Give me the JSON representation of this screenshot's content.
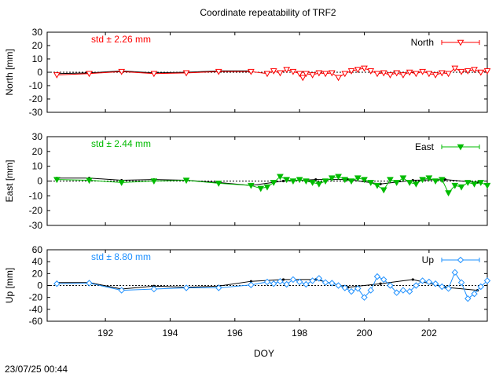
{
  "title": "Coordinate repeatability of TRF2",
  "timestamp": "23/07/25 00:44",
  "chart_data": {
    "type": "line",
    "title": "Coordinate repeatability of TRF2",
    "xlabel": "DOY",
    "xlim": [
      190.2,
      203.8
    ],
    "xticks": [
      192,
      194,
      196,
      198,
      200,
      202
    ],
    "grid": false,
    "legend_position": "top-right",
    "panels": [
      {
        "name": "North",
        "ylabel": "North [mm]",
        "ylim": [
          -30,
          30
        ],
        "yticks": [
          -30,
          -20,
          -10,
          0,
          10,
          20,
          30
        ],
        "std_label": "std ± 2.26 mm",
        "color": "#ff0000",
        "marker": "triangle-down-open",
        "series": [
          {
            "name": "North",
            "x": [
              190.5,
              191.5,
              192.5,
              193.5,
              194.5,
              195.5,
              196.5,
              197.0,
              197.2,
              197.4,
              197.6,
              197.8,
              198.0,
              198.1,
              198.2,
              198.4,
              198.6,
              198.8,
              199.0,
              199.2,
              199.4,
              199.6,
              199.8,
              200.0,
              200.2,
              200.4,
              200.6,
              200.8,
              201.0,
              201.2,
              201.4,
              201.6,
              201.8,
              202.0,
              202.2,
              202.4,
              202.6,
              202.8,
              203.0,
              203.2,
              203.4,
              203.6,
              203.8
            ],
            "y": [
              -2,
              -1,
              0.5,
              -1,
              -0.5,
              0.5,
              0.5,
              -1,
              1,
              -0.5,
              2,
              0.5,
              -1,
              -4,
              -1,
              -2,
              -0.5,
              -1,
              -0.5,
              -4,
              -1,
              1,
              2,
              3,
              1,
              -1,
              -0.5,
              -2,
              -0.5,
              -2,
              0,
              -1,
              0.5,
              -1,
              -2,
              -0.5,
              -1,
              3,
              0.5,
              1,
              2,
              0,
              1
            ]
          },
          {
            "name": "trend",
            "x": [
              190.5,
              191.5,
              192.5,
              193.5,
              194.5,
              195.5,
              196.5
            ],
            "y": [
              -1,
              -0.5,
              1,
              -0.5,
              0,
              1,
              1
            ]
          }
        ]
      },
      {
        "name": "East",
        "ylabel": "East [mm]",
        "ylim": [
          -30,
          30
        ],
        "yticks": [
          -30,
          -20,
          -10,
          0,
          10,
          20,
          30
        ],
        "std_label": "std ± 2.44 mm",
        "color": "#00bb00",
        "marker": "triangle-down-filled",
        "series": [
          {
            "name": "East",
            "x": [
              190.5,
              191.5,
              192.5,
              193.5,
              194.5,
              195.5,
              196.5,
              196.8,
              197.0,
              197.2,
              197.4,
              197.6,
              197.8,
              198.0,
              198.2,
              198.4,
              198.6,
              198.8,
              199.0,
              199.2,
              199.4,
              199.6,
              199.8,
              200.0,
              200.2,
              200.4,
              200.6,
              200.8,
              201.0,
              201.2,
              201.4,
              201.6,
              201.8,
              202.0,
              202.2,
              202.4,
              202.6,
              202.8,
              203.0,
              203.2,
              203.4,
              203.6,
              203.8
            ],
            "y": [
              1,
              0.5,
              -1,
              0,
              0.5,
              -1.5,
              -3,
              -5,
              -4,
              -1,
              3,
              1,
              0,
              1,
              0,
              -1,
              -2,
              0,
              2,
              3,
              1,
              0,
              2,
              1,
              -1,
              -3,
              -6,
              1,
              -1,
              2,
              -1,
              -2,
              1,
              2,
              0,
              1,
              -8,
              -3,
              -4,
              -1,
              -2,
              -1,
              -3
            ]
          },
          {
            "name": "trend",
            "x": [
              190.5,
              191.5,
              192.5,
              193.5,
              194.5,
              195.5,
              196.5,
              197.5,
              198.5,
              199.5,
              200.5,
              201.5,
              202.5,
              203.5
            ],
            "y": [
              2,
              2,
              0.5,
              1,
              0.5,
              -1,
              -3,
              0,
              1,
              1,
              -2,
              0.5,
              1,
              -1
            ]
          }
        ]
      },
      {
        "name": "Up",
        "ylabel": "Up [mm]",
        "ylim": [
          -60,
          60
        ],
        "yticks": [
          -60,
          -40,
          -20,
          0,
          20,
          40,
          60
        ],
        "std_label": "std ± 8.80 mm",
        "color": "#1e90ff",
        "marker": "diamond-open",
        "series": [
          {
            "name": "Up",
            "x": [
              190.5,
              191.5,
              192.5,
              193.5,
              194.5,
              195.5,
              196.5,
              197.0,
              197.2,
              197.4,
              197.6,
              197.8,
              198.0,
              198.2,
              198.4,
              198.6,
              198.8,
              199.0,
              199.2,
              199.4,
              199.6,
              199.8,
              200.0,
              200.2,
              200.4,
              200.6,
              200.8,
              201.0,
              201.2,
              201.4,
              201.6,
              201.8,
              202.0,
              202.2,
              202.4,
              202.6,
              202.8,
              203.0,
              203.2,
              203.4,
              203.6,
              203.8
            ],
            "y": [
              3,
              4,
              -8,
              -6,
              -4,
              -4,
              1,
              6,
              3,
              7,
              2,
              10,
              6,
              2,
              8,
              12,
              5,
              4,
              0,
              -4,
              -10,
              -5,
              -20,
              -8,
              15,
              10,
              0,
              -12,
              -8,
              -10,
              0,
              8,
              6,
              3,
              -2,
              -5,
              22,
              5,
              -22,
              -14,
              -2,
              8
            ]
          },
          {
            "name": "trend",
            "x": [
              190.5,
              191.5,
              192.5,
              193.5,
              194.5,
              195.5,
              196.5,
              197.5,
              198.5,
              199.5,
              200.5,
              201.5,
              202.5,
              203.5
            ],
            "y": [
              5,
              5,
              -6,
              -1,
              -3,
              -1,
              7,
              10,
              10,
              -3,
              3,
              10,
              -3,
              -8
            ]
          }
        ]
      }
    ]
  }
}
